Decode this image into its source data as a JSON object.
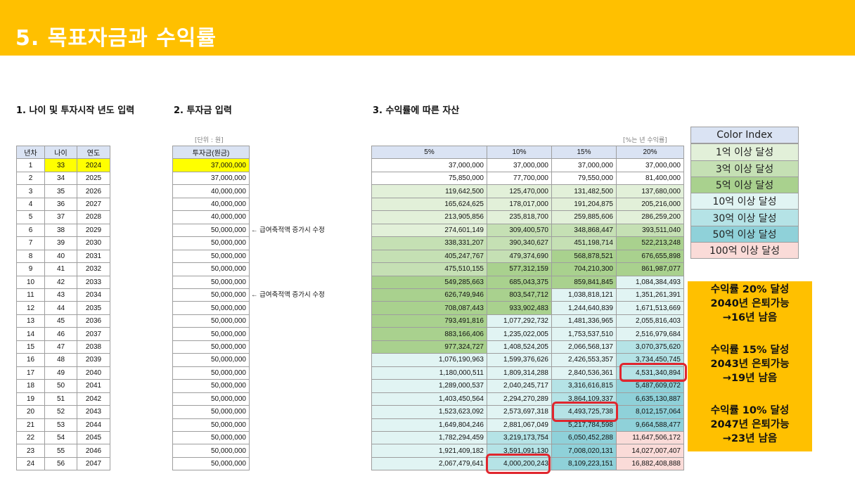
{
  "title": "5. 목표자금과 수익률",
  "sections": {
    "s1": "1. 나이 및 투자시작 년도 입력",
    "s2": "2. 투자금 입력",
    "s3": "3. 수익률에 따른 자산"
  },
  "notes": {
    "unit": "[단위 : 원]",
    "rate": "[%는 년 수익률]",
    "salary_note": "← 급여축적액 증가시 수정"
  },
  "table1": {
    "headers": [
      "년차",
      "나이",
      "연도"
    ],
    "rows": [
      [
        "1",
        "33",
        "2024"
      ],
      [
        "2",
        "34",
        "2025"
      ],
      [
        "3",
        "35",
        "2026"
      ],
      [
        "4",
        "36",
        "2027"
      ],
      [
        "5",
        "37",
        "2028"
      ],
      [
        "6",
        "38",
        "2029"
      ],
      [
        "7",
        "39",
        "2030"
      ],
      [
        "8",
        "40",
        "2031"
      ],
      [
        "9",
        "41",
        "2032"
      ],
      [
        "10",
        "42",
        "2033"
      ],
      [
        "11",
        "43",
        "2034"
      ],
      [
        "12",
        "44",
        "2035"
      ],
      [
        "13",
        "45",
        "2036"
      ],
      [
        "14",
        "46",
        "2037"
      ],
      [
        "15",
        "47",
        "2038"
      ],
      [
        "16",
        "48",
        "2039"
      ],
      [
        "17",
        "49",
        "2040"
      ],
      [
        "18",
        "50",
        "2041"
      ],
      [
        "19",
        "51",
        "2042"
      ],
      [
        "20",
        "52",
        "2043"
      ],
      [
        "21",
        "53",
        "2044"
      ],
      [
        "22",
        "54",
        "2045"
      ],
      [
        "23",
        "55",
        "2046"
      ],
      [
        "24",
        "56",
        "2047"
      ]
    ]
  },
  "table2": {
    "header": "투자금(원금)",
    "rows": [
      "37,000,000",
      "37,000,000",
      "40,000,000",
      "40,000,000",
      "40,000,000",
      "50,000,000",
      "50,000,000",
      "50,000,000",
      "50,000,000",
      "50,000,000",
      "50,000,000",
      "50,000,000",
      "50,000,000",
      "50,000,000",
      "50,000,000",
      "50,000,000",
      "50,000,000",
      "50,000,000",
      "50,000,000",
      "50,000,000",
      "50,000,000",
      "50,000,000",
      "50,000,000",
      "50,000,000"
    ]
  },
  "table3": {
    "headers": [
      "5%",
      "10%",
      "15%",
      "20%"
    ],
    "rows": [
      [
        "37,000,000",
        "37,000,000",
        "37,000,000",
        "37,000,000"
      ],
      [
        "75,850,000",
        "77,700,000",
        "79,550,000",
        "81,400,000"
      ],
      [
        "119,642,500",
        "125,470,000",
        "131,482,500",
        "137,680,000"
      ],
      [
        "165,624,625",
        "178,017,000",
        "191,204,875",
        "205,216,000"
      ],
      [
        "213,905,856",
        "235,818,700",
        "259,885,606",
        "286,259,200"
      ],
      [
        "274,601,149",
        "309,400,570",
        "348,868,447",
        "393,511,040"
      ],
      [
        "338,331,207",
        "390,340,627",
        "451,198,714",
        "522,213,248"
      ],
      [
        "405,247,767",
        "479,374,690",
        "568,878,521",
        "676,655,898"
      ],
      [
        "475,510,155",
        "577,312,159",
        "704,210,300",
        "861,987,077"
      ],
      [
        "549,285,663",
        "685,043,375",
        "859,841,845",
        "1,084,384,493"
      ],
      [
        "626,749,946",
        "803,547,712",
        "1,038,818,121",
        "1,351,261,391"
      ],
      [
        "708,087,443",
        "933,902,483",
        "1,244,640,839",
        "1,671,513,669"
      ],
      [
        "793,491,816",
        "1,077,292,732",
        "1,481,336,965",
        "2,055,816,403"
      ],
      [
        "883,166,406",
        "1,235,022,005",
        "1,753,537,510",
        "2,516,979,684"
      ],
      [
        "977,324,727",
        "1,408,524,205",
        "2,066,568,137",
        "3,070,375,620"
      ],
      [
        "1,076,190,963",
        "1,599,376,626",
        "2,426,553,357",
        "3,734,450,745"
      ],
      [
        "1,180,000,511",
        "1,809,314,288",
        "2,840,536,361",
        "4,531,340,894"
      ],
      [
        "1,289,000,537",
        "2,040,245,717",
        "3,316,616,815",
        "5,487,609,072"
      ],
      [
        "1,403,450,564",
        "2,294,270,289",
        "3,864,109,337",
        "6,635,130,887"
      ],
      [
        "1,523,623,092",
        "2,573,697,318",
        "4,493,725,738",
        "8,012,157,064"
      ],
      [
        "1,649,804,246",
        "2,881,067,049",
        "5,217,784,598",
        "9,664,588,477"
      ],
      [
        "1,782,294,459",
        "3,219,173,754",
        "6,050,452,288",
        "11,647,506,172"
      ],
      [
        "1,921,409,182",
        "3,591,091,130",
        "7,008,020,131",
        "14,027,007,407"
      ],
      [
        "2,067,479,641",
        "4,000,200,243",
        "8,109,223,151",
        "16,882,408,888"
      ]
    ]
  },
  "legend": {
    "title": "Color Index",
    "items": [
      "1억 이상 달성",
      "3억 이상 달성",
      "5억 이상 달성",
      "10억 이상 달성",
      "30억 이상 달성",
      "50억 이상 달성",
      "100억 이상 달성"
    ]
  },
  "colors": {
    "banner": "#ffc000",
    "header": "#dae3f3",
    "start_highlight": "#ffff00",
    "tiers": [
      "#e2f0d9",
      "#c5e0b4",
      "#a9d18e",
      "#e1f4f3",
      "#b5e3e6",
      "#8fd1d9",
      "#fadbd8"
    ],
    "ring": "#e0262e"
  },
  "callout": [
    [
      "수익률 20% 달성",
      "2040년 은퇴가능",
      "→16년 남음"
    ],
    [
      "수익률 15% 달성",
      "2043년 은퇴가능",
      "→19년 남음"
    ],
    [
      "수익률 10% 달성",
      "2047년 은퇴가능",
      "→23년 남음"
    ]
  ]
}
